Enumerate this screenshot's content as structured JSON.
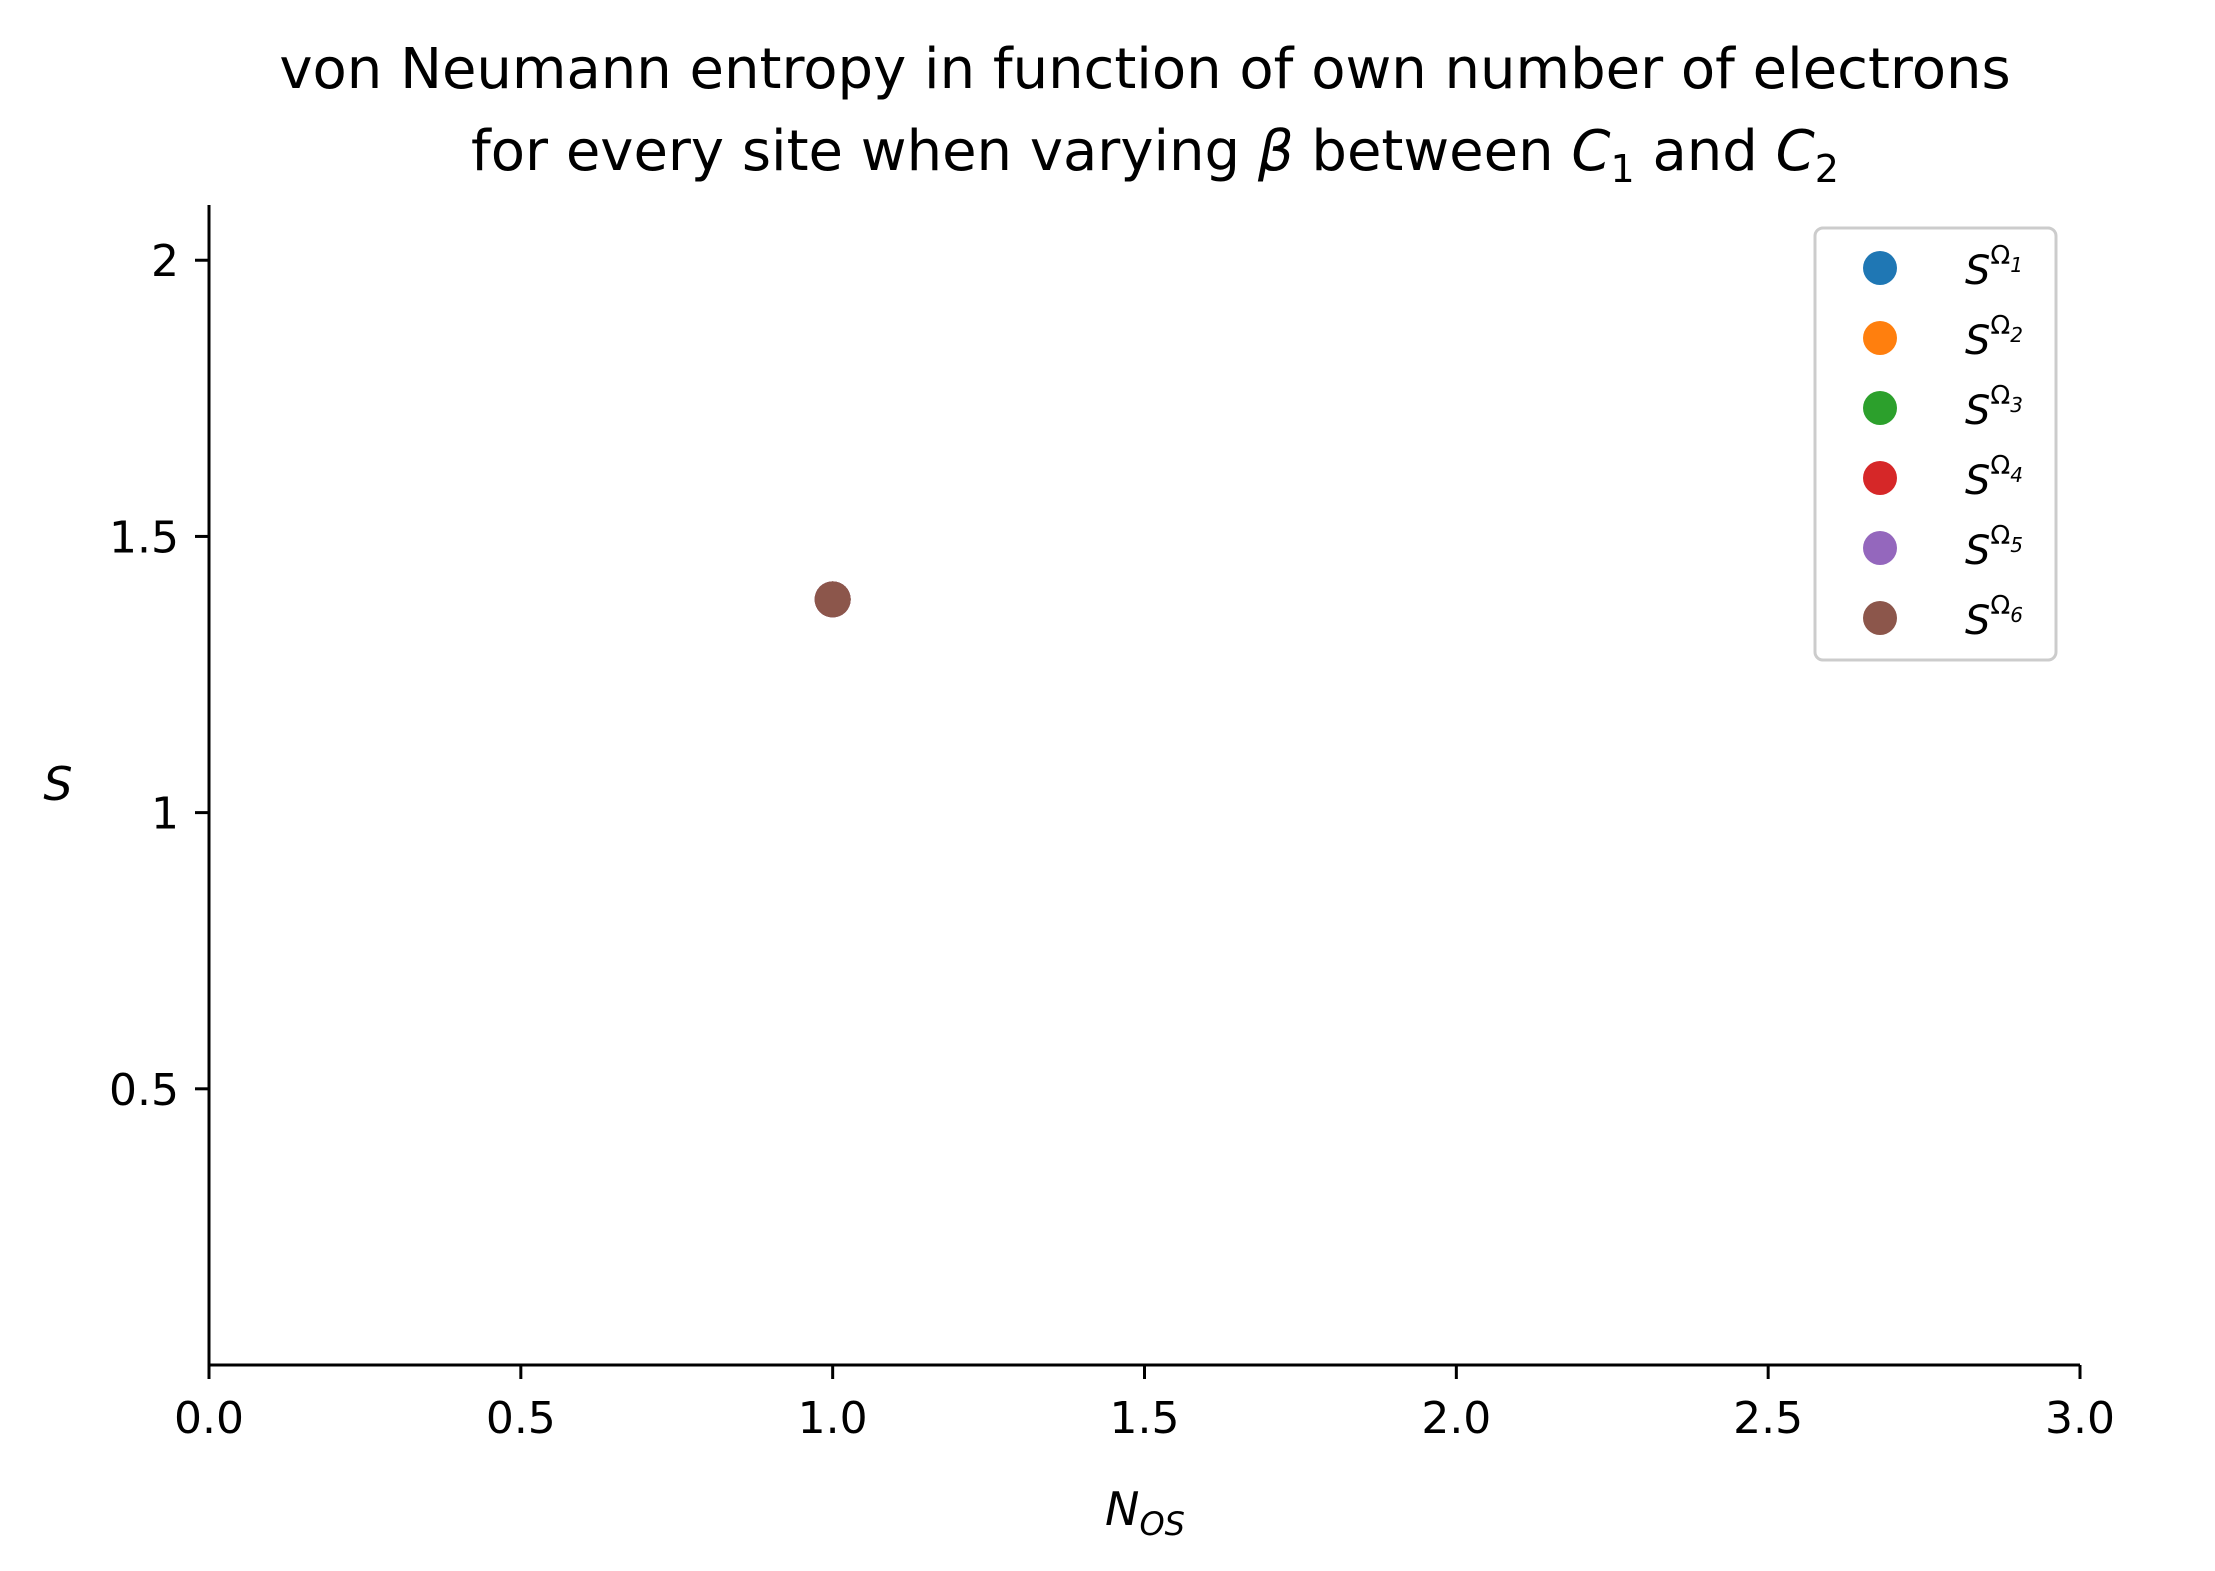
{
  "chart_data": {
    "type": "scatter",
    "title": {
      "line1": "von Neumann entropy in function of own number of electrons",
      "line2_before_beta": "for every site when varying ",
      "beta": "β",
      "line2_between": " between ",
      "c": "C",
      "sub1": "1",
      "line2_and": " and ",
      "sub2": "2"
    },
    "xlabel": {
      "main": "N",
      "sub": "OS"
    },
    "ylabel": "S",
    "xlim": [
      0.0,
      3.0
    ],
    "ylim": [
      0.0,
      2.1
    ],
    "xticks": [
      0.0,
      0.5,
      1.0,
      1.5,
      2.0,
      2.5,
      3.0
    ],
    "xtick_labels": [
      "0.0",
      "0.5",
      "1.0",
      "1.5",
      "2.0",
      "2.5",
      "3.0"
    ],
    "yticks": [
      0.5,
      1.0,
      1.5,
      2.0
    ],
    "ytick_labels": [
      "0.5",
      "1",
      "1.5",
      "2"
    ],
    "grid": false,
    "legend_position": "top-right",
    "series": [
      {
        "name": "S",
        "sup": "Ω",
        "sub": "1",
        "color": "#1f77b4",
        "points": [
          [
            1.0,
            1.386
          ]
        ]
      },
      {
        "name": "S",
        "sup": "Ω",
        "sub": "2",
        "color": "#ff7f0e",
        "points": [
          [
            1.0,
            1.386
          ]
        ]
      },
      {
        "name": "S",
        "sup": "Ω",
        "sub": "3",
        "color": "#2ca02c",
        "points": [
          [
            1.0,
            1.386
          ]
        ]
      },
      {
        "name": "S",
        "sup": "Ω",
        "sub": "4",
        "color": "#d62728",
        "points": [
          [
            1.0,
            1.386
          ]
        ]
      },
      {
        "name": "S",
        "sup": "Ω",
        "sub": "5",
        "color": "#9467bd",
        "points": [
          [
            1.0,
            1.386
          ]
        ]
      },
      {
        "name": "S",
        "sup": "Ω",
        "sub": "6",
        "color": "#8c564b",
        "points": [
          [
            1.0,
            1.386
          ]
        ]
      }
    ]
  }
}
